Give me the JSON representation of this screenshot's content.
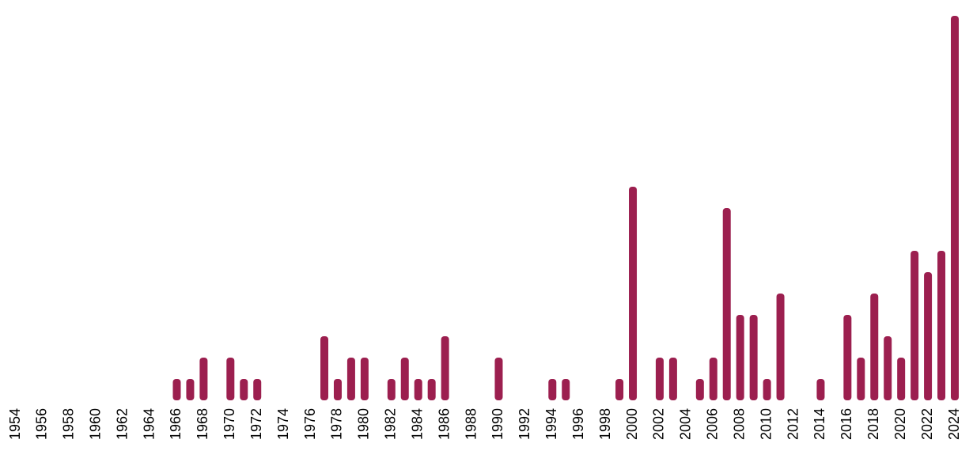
{
  "chart_data": {
    "type": "bar",
    "categories": [
      "1954",
      null,
      "1956",
      null,
      "1958",
      null,
      "1960",
      null,
      "1962",
      null,
      "1964",
      null,
      "1966",
      null,
      "1968",
      null,
      "1970",
      null,
      "1972",
      null,
      "1974",
      null,
      "1976",
      null,
      "1978",
      null,
      "1980",
      null,
      "1982",
      null,
      "1984",
      null,
      "1986",
      null,
      "1988",
      null,
      "1990",
      null,
      "1992",
      null,
      "1994",
      null,
      "1996",
      null,
      "1998",
      null,
      "2000",
      null,
      "2002",
      null,
      "2004",
      null,
      "2006",
      null,
      "2008",
      null,
      "2010",
      null,
      "2012",
      null,
      "2014",
      null,
      "2016",
      null,
      "2018",
      null,
      "2020",
      null,
      "2022",
      null,
      "2024"
    ],
    "values": [
      0,
      0,
      0,
      0,
      0,
      0,
      0,
      0,
      0,
      0,
      0,
      0,
      1,
      1,
      2,
      0,
      2,
      1,
      1,
      0,
      0,
      0,
      0,
      3,
      1,
      2,
      2,
      0,
      1,
      2,
      1,
      1,
      3,
      0,
      0,
      0,
      2,
      0,
      0,
      0,
      1,
      1,
      0,
      0,
      0,
      1,
      10,
      0,
      2,
      2,
      0,
      1,
      2,
      9,
      4,
      4,
      1,
      5,
      0,
      0,
      1,
      0,
      4,
      2,
      5,
      3,
      2,
      7,
      6,
      7,
      18
    ],
    "color": "#9c1f4f",
    "ylim": [
      0,
      18
    ]
  }
}
